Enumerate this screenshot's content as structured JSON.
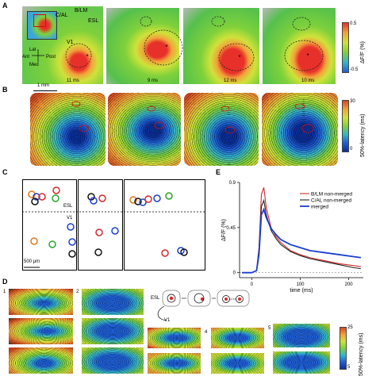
{
  "panels": {
    "A": {
      "letter": "A",
      "region_labels": {
        "cal": "C/AL",
        "blm": "B/LM",
        "esl": "ESL",
        "v1": "V1"
      },
      "orientation": {
        "lat": "Lat",
        "ant": "Ant",
        "post": "Post",
        "med": "Med"
      },
      "times": [
        "11 ms",
        "9 ms",
        "12 ms",
        "10 ms"
      ],
      "colorbar": {
        "max": "0.5",
        "min": "-0.5",
        "label": "ΔF/F (%)"
      },
      "colors": {
        "high": "#e8302a",
        "mid": "#7fd13b",
        "low": "#1f5fd6"
      }
    },
    "B": {
      "letter": "B",
      "scale": "1 mm",
      "colorbar": {
        "max": "30",
        "min": "0",
        "label": "50%-latency (ms)"
      }
    },
    "C": {
      "letter": "C",
      "labels": {
        "esl": "ESL",
        "v1": "V1"
      },
      "scale": "500 μm"
    },
    "D": {
      "letter": "D",
      "cases": [
        "1",
        "2",
        "3",
        "4",
        "5"
      ],
      "labels": {
        "esl": "ESL",
        "v1": "V1"
      },
      "colorbar": {
        "max": "25",
        "min": "5",
        "label": "50%-latency (ms)"
      }
    },
    "E": {
      "letter": "E",
      "chart_data": {
        "type": "line",
        "xlabel": "time (ms)",
        "ylabel": "ΔF/F (%)",
        "xlim": [
          -25,
          230
        ],
        "ylim": [
          -0.05,
          0.9
        ],
        "xticks": [
          0,
          100,
          200
        ],
        "yticks": [
          0,
          0.45,
          0.9
        ],
        "ytick_labels": [
          "0",
          "0.45",
          "0.9"
        ],
        "legend_position": "top-right",
        "x": [
          -20,
          0,
          10,
          15,
          20,
          25,
          30,
          40,
          50,
          60,
          80,
          100,
          120,
          150,
          180,
          210,
          225
        ],
        "series": [
          {
            "name": "B/LM non-merged",
            "color": "#d62a2a",
            "values": [
              0.0,
              0.0,
              0.02,
              0.25,
              0.78,
              0.85,
              0.65,
              0.45,
              0.36,
              0.3,
              0.22,
              0.18,
              0.15,
              0.12,
              0.09,
              0.07,
              0.06
            ]
          },
          {
            "name": "C/AL non-merged",
            "color": "#222222",
            "values": [
              0.0,
              0.0,
              0.02,
              0.22,
              0.66,
              0.72,
              0.58,
              0.42,
              0.34,
              0.28,
              0.21,
              0.17,
              0.14,
              0.11,
              0.08,
              0.05,
              0.04
            ]
          },
          {
            "name": "merged",
            "color": "#1a3fd1",
            "values": [
              0.0,
              0.0,
              0.02,
              0.18,
              0.58,
              0.63,
              0.55,
              0.44,
              0.38,
              0.33,
              0.28,
              0.25,
              0.22,
              0.2,
              0.18,
              0.16,
              0.15
            ]
          }
        ]
      }
    }
  }
}
